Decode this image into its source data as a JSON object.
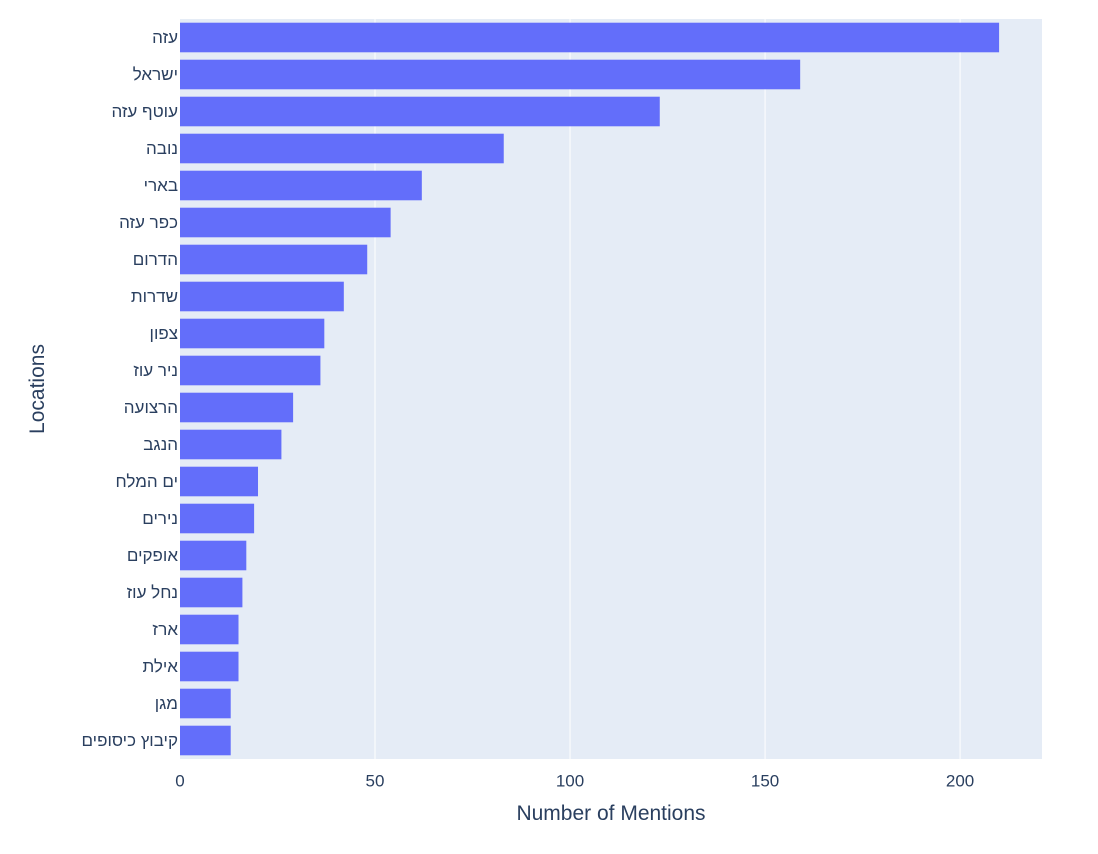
{
  "chart_data": {
    "type": "bar",
    "orientation": "horizontal",
    "categories": [
      "עזה",
      "ישראל",
      "עוטף עזה",
      "נובה",
      "בארי",
      "כפר עזה",
      "הדרום",
      "שדרות",
      "צפון",
      "ניר עוז",
      "הרצועה",
      "הנגב",
      "ים המלח",
      "נירים",
      "אופקים",
      "נחל עוז",
      "ארז",
      "אילת",
      "מגן",
      "קיבוץ כיסופים"
    ],
    "values": [
      210,
      159,
      123,
      83,
      62,
      54,
      48,
      42,
      37,
      36,
      29,
      26,
      20,
      19,
      17,
      16,
      15,
      15,
      13,
      13
    ],
    "xlabel": "Number of Mentions",
    "ylabel": "Locations",
    "xlim": [
      0,
      221
    ],
    "x_ticks": [
      0,
      50,
      100,
      150,
      200
    ],
    "x_tick_labels": [
      "0",
      "50",
      "100",
      "150",
      "200"
    ],
    "grid": true,
    "colors": {
      "bar": "#636efa",
      "plot_background": "#e5ecf6",
      "grid": "#ffffff",
      "text": "#2a3f5f"
    }
  }
}
